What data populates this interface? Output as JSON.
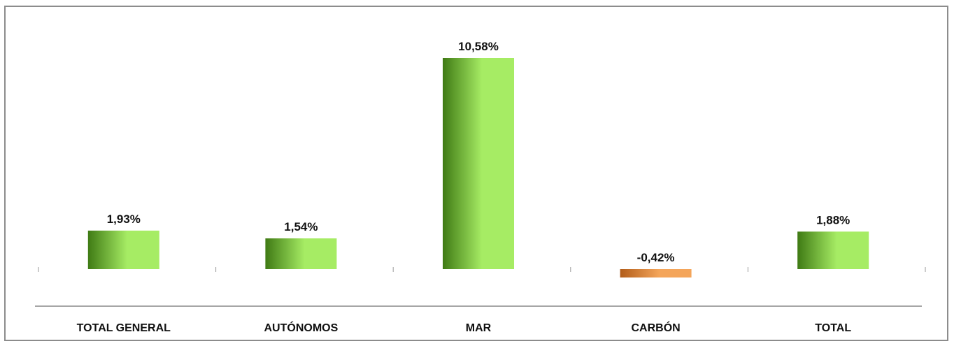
{
  "chart_data": {
    "type": "bar",
    "categories": [
      "TOTAL GENERAL",
      "AUTÓNOMOS",
      "MAR",
      "CARBÓN",
      "TOTAL"
    ],
    "values": [
      1.93,
      1.54,
      10.58,
      -0.42,
      1.88
    ],
    "data_labels": [
      "1,93%",
      "1,54%",
      "10,58%",
      "-0,42%",
      "1,88%"
    ],
    "title": "",
    "xlabel": "",
    "ylabel": "",
    "ylim": [
      -0.42,
      10.58
    ],
    "grid": false,
    "legend": "none",
    "colors": {
      "positive_light": "#a6ec64",
      "positive_dark": "#3f7a14",
      "negative_light": "#f4a55a",
      "negative_dark": "#b25d1a",
      "axis": "#a6a6a6"
    }
  }
}
